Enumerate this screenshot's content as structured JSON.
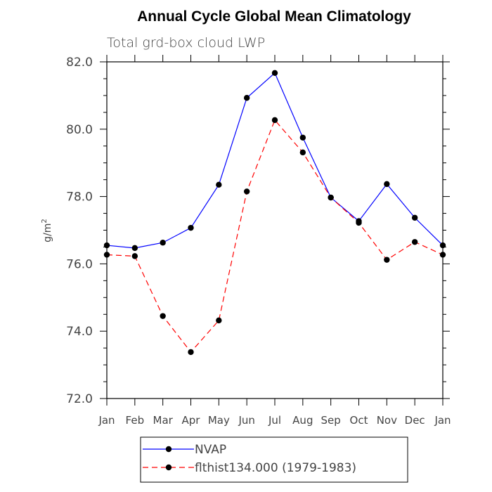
{
  "chart_data": {
    "type": "line",
    "title": "Annual Cycle Global Mean Climatology",
    "subtitle": "Total grd-box cloud LWP",
    "ylabel": "g/m",
    "ylabel_sup": "2",
    "xlabel": "",
    "categories": [
      "Jan",
      "Feb",
      "Mar",
      "Apr",
      "May",
      "Jun",
      "Jul",
      "Aug",
      "Sep",
      "Oct",
      "Nov",
      "Dec",
      "Jan"
    ],
    "ylim": [
      72.0,
      82.0
    ],
    "yticks": [
      "72.0",
      "74.0",
      "76.0",
      "78.0",
      "80.0",
      "82.0"
    ],
    "series": [
      {
        "name": "NVAP",
        "color": "#0000ff",
        "dash": "solid",
        "values": [
          76.55,
          76.47,
          76.63,
          77.07,
          78.35,
          80.93,
          81.67,
          79.75,
          77.97,
          77.27,
          78.37,
          77.37,
          76.55
        ]
      },
      {
        "name": "flthist134.000 (1979-1983)",
        "color": "#ff0000",
        "dash": "dashed",
        "values": [
          76.27,
          76.23,
          74.45,
          73.38,
          74.32,
          78.15,
          80.27,
          79.31,
          77.97,
          77.22,
          76.12,
          76.65,
          76.27
        ]
      }
    ],
    "legend_position": "bottom"
  }
}
